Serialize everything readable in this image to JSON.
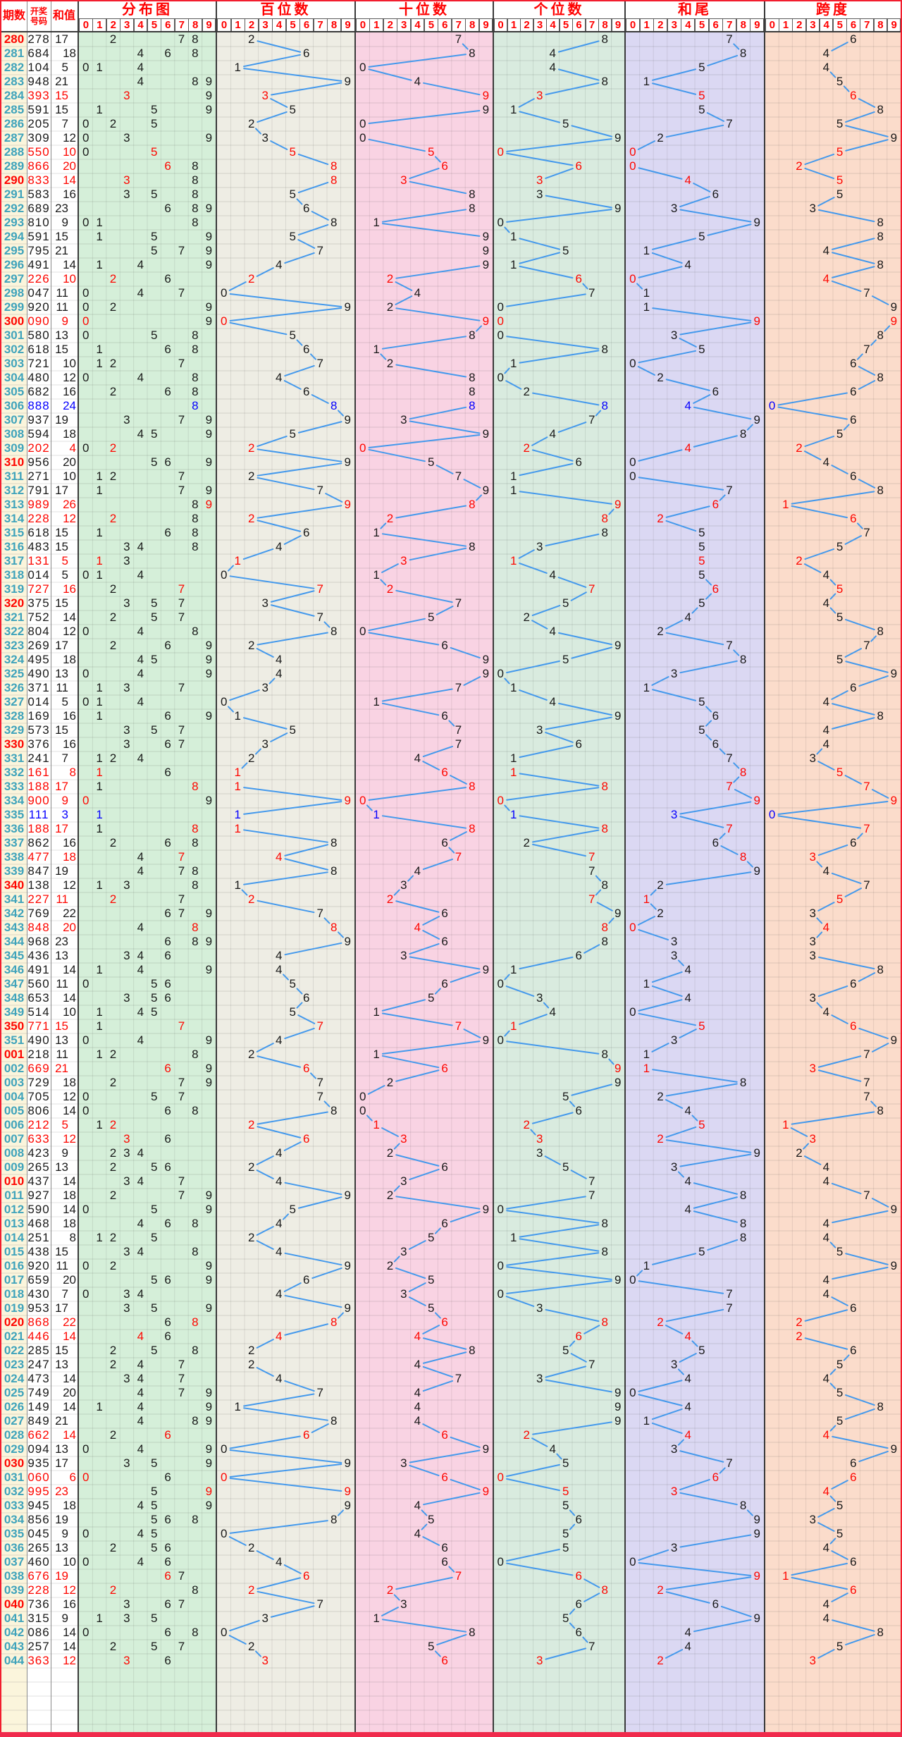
{
  "header": {
    "period_label": "期数",
    "number_label_line1": "开奖",
    "number_label_line2": "号码",
    "sum_label": "和值",
    "digits": [
      "0",
      "1",
      "2",
      "3",
      "4",
      "5",
      "6",
      "7",
      "8",
      "9"
    ],
    "sections": [
      {
        "key": "fenbu",
        "label": "分布图"
      },
      {
        "key": "bai",
        "label": "百位数"
      },
      {
        "key": "shi",
        "label": "十位数"
      },
      {
        "key": "ge",
        "label": "个位数"
      },
      {
        "key": "hewei",
        "label": "和尾"
      },
      {
        "key": "kuadu",
        "label": "跨度"
      }
    ]
  },
  "colors": {
    "red": "#fe0600",
    "blue": "#0600fe",
    "black": "#191919",
    "teal_period": "#3fa3bb",
    "line_blue": "#4499ec",
    "period_col_bg": "#fbf5dc",
    "fenbu_bg": "#d5efd9",
    "bai_bg": "#eeede4",
    "shi_bg": "#f9d3e3",
    "ge_bg": "#d9ebdf",
    "hewei_bg": "#dbd8f3",
    "kuadu_bg": "#fbdccb",
    "frame_red": "#f21d2e",
    "bottom_bar": "#f02a4c",
    "grid_line": "rgba(40,40,40,0.14)",
    "divider": "#3a3a3a"
  },
  "chart_data": {
    "type": "table",
    "columns": [
      "期数",
      "开奖号码",
      "和值",
      "分布图 0-9",
      "百位数 0-9",
      "十位数 0-9",
      "个位数 0-9",
      "和尾 0-9",
      "跨度 0-9"
    ],
    "red_periods": [
      "280",
      "290",
      "300",
      "310",
      "320",
      "330",
      "340",
      "350",
      "001",
      "010",
      "020",
      "030",
      "040"
    ],
    "rows": [
      [
        "280",
        "278",
        17
      ],
      [
        "281",
        "684",
        18
      ],
      [
        "282",
        "104",
        5
      ],
      [
        "283",
        "948",
        21
      ],
      [
        "284",
        "393",
        15
      ],
      [
        "285",
        "591",
        15
      ],
      [
        "286",
        "205",
        7
      ],
      [
        "287",
        "309",
        12
      ],
      [
        "288",
        "550",
        10
      ],
      [
        "289",
        "866",
        20
      ],
      [
        "290",
        "833",
        14
      ],
      [
        "291",
        "583",
        16
      ],
      [
        "292",
        "689",
        23
      ],
      [
        "293",
        "810",
        9
      ],
      [
        "294",
        "591",
        15
      ],
      [
        "295",
        "795",
        21
      ],
      [
        "296",
        "491",
        14
      ],
      [
        "297",
        "226",
        10
      ],
      [
        "298",
        "047",
        11
      ],
      [
        "299",
        "920",
        11
      ],
      [
        "300",
        "090",
        9
      ],
      [
        "301",
        "580",
        13
      ],
      [
        "302",
        "618",
        15
      ],
      [
        "303",
        "721",
        10
      ],
      [
        "304",
        "480",
        12
      ],
      [
        "305",
        "682",
        16
      ],
      [
        "306",
        "888",
        24
      ],
      [
        "307",
        "937",
        19
      ],
      [
        "308",
        "594",
        18
      ],
      [
        "309",
        "202",
        4
      ],
      [
        "310",
        "956",
        20
      ],
      [
        "311",
        "271",
        10
      ],
      [
        "312",
        "791",
        17
      ],
      [
        "313",
        "989",
        26
      ],
      [
        "314",
        "228",
        12
      ],
      [
        "315",
        "618",
        15
      ],
      [
        "316",
        "483",
        15
      ],
      [
        "317",
        "131",
        5
      ],
      [
        "318",
        "014",
        5
      ],
      [
        "319",
        "727",
        16
      ],
      [
        "320",
        "375",
        15
      ],
      [
        "321",
        "752",
        14
      ],
      [
        "322",
        "804",
        12
      ],
      [
        "323",
        "269",
        17
      ],
      [
        "324",
        "495",
        18
      ],
      [
        "325",
        "490",
        13
      ],
      [
        "326",
        "371",
        11
      ],
      [
        "327",
        "014",
        5
      ],
      [
        "328",
        "169",
        16
      ],
      [
        "329",
        "573",
        15
      ],
      [
        "330",
        "376",
        16
      ],
      [
        "331",
        "241",
        7
      ],
      [
        "332",
        "161",
        8
      ],
      [
        "333",
        "188",
        17
      ],
      [
        "334",
        "900",
        9
      ],
      [
        "335",
        "111",
        3
      ],
      [
        "336",
        "188",
        17
      ],
      [
        "337",
        "862",
        16
      ],
      [
        "338",
        "477",
        18
      ],
      [
        "339",
        "847",
        19
      ],
      [
        "340",
        "138",
        12
      ],
      [
        "341",
        "227",
        11
      ],
      [
        "342",
        "769",
        22
      ],
      [
        "343",
        "848",
        20
      ],
      [
        "344",
        "968",
        23
      ],
      [
        "345",
        "436",
        13
      ],
      [
        "346",
        "491",
        14
      ],
      [
        "347",
        "560",
        11
      ],
      [
        "348",
        "653",
        14
      ],
      [
        "349",
        "514",
        10
      ],
      [
        "350",
        "771",
        15
      ],
      [
        "351",
        "490",
        13
      ],
      [
        "001",
        "218",
        11
      ],
      [
        "002",
        "669",
        21
      ],
      [
        "003",
        "729",
        18
      ],
      [
        "004",
        "705",
        12
      ],
      [
        "005",
        "806",
        14
      ],
      [
        "006",
        "212",
        5
      ],
      [
        "007",
        "633",
        12
      ],
      [
        "008",
        "423",
        9
      ],
      [
        "009",
        "265",
        13
      ],
      [
        "010",
        "437",
        14
      ],
      [
        "011",
        "927",
        18
      ],
      [
        "012",
        "590",
        14
      ],
      [
        "013",
        "468",
        18
      ],
      [
        "014",
        "251",
        8
      ],
      [
        "015",
        "438",
        15
      ],
      [
        "016",
        "920",
        11
      ],
      [
        "017",
        "659",
        20
      ],
      [
        "018",
        "430",
        7
      ],
      [
        "019",
        "953",
        17
      ],
      [
        "020",
        "868",
        22
      ],
      [
        "021",
        "446",
        14
      ],
      [
        "022",
        "285",
        15
      ],
      [
        "023",
        "247",
        13
      ],
      [
        "024",
        "473",
        14
      ],
      [
        "025",
        "749",
        20
      ],
      [
        "026",
        "149",
        14
      ],
      [
        "027",
        "849",
        21
      ],
      [
        "028",
        "662",
        14
      ],
      [
        "029",
        "094",
        13
      ],
      [
        "030",
        "935",
        17
      ],
      [
        "031",
        "060",
        6
      ],
      [
        "032",
        "995",
        23
      ],
      [
        "033",
        "945",
        18
      ],
      [
        "034",
        "856",
        19
      ],
      [
        "035",
        "045",
        9
      ],
      [
        "036",
        "265",
        13
      ],
      [
        "037",
        "460",
        10
      ],
      [
        "038",
        "676",
        19
      ],
      [
        "039",
        "228",
        12
      ],
      [
        "040",
        "736",
        16
      ],
      [
        "041",
        "315",
        9
      ],
      [
        "042",
        "086",
        14
      ],
      [
        "043",
        "257",
        14
      ],
      [
        "044",
        "363",
        12
      ]
    ]
  }
}
